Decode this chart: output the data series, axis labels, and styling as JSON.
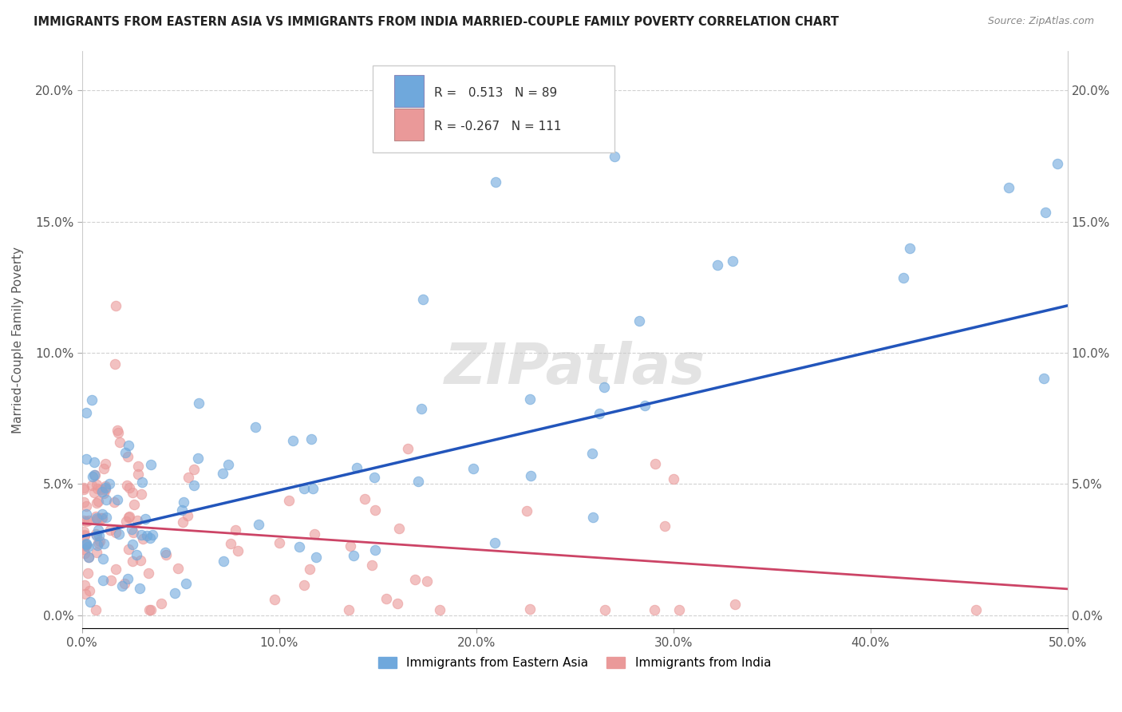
{
  "title": "IMMIGRANTS FROM EASTERN ASIA VS IMMIGRANTS FROM INDIA MARRIED-COUPLE FAMILY POVERTY CORRELATION CHART",
  "source": "Source: ZipAtlas.com",
  "ylabel": "Married-Couple Family Poverty",
  "xlim": [
    0.0,
    0.5
  ],
  "ylim": [
    -0.005,
    0.215
  ],
  "xticks": [
    0.0,
    0.1,
    0.2,
    0.3,
    0.4,
    0.5
  ],
  "xtick_labels": [
    "0.0%",
    "10.0%",
    "20.0%",
    "30.0%",
    "40.0%",
    "50.0%"
  ],
  "yticks": [
    0.0,
    0.05,
    0.1,
    0.15,
    0.2
  ],
  "ytick_labels": [
    "0.0%",
    "5.0%",
    "10.0%",
    "15.0%",
    "20.0%"
  ],
  "color_eastern_asia": "#6fa8dc",
  "color_india": "#ea9999",
  "color_ea_line": "#2255bb",
  "color_in_line": "#cc4466",
  "R_eastern_asia": 0.513,
  "N_eastern_asia": 89,
  "R_india": -0.267,
  "N_india": 111,
  "ea_line_x0": 0.0,
  "ea_line_y0": 0.03,
  "ea_line_x1": 0.5,
  "ea_line_y1": 0.118,
  "in_line_x0": 0.0,
  "in_line_y0": 0.035,
  "in_line_x1": 0.5,
  "in_line_y1": 0.01
}
